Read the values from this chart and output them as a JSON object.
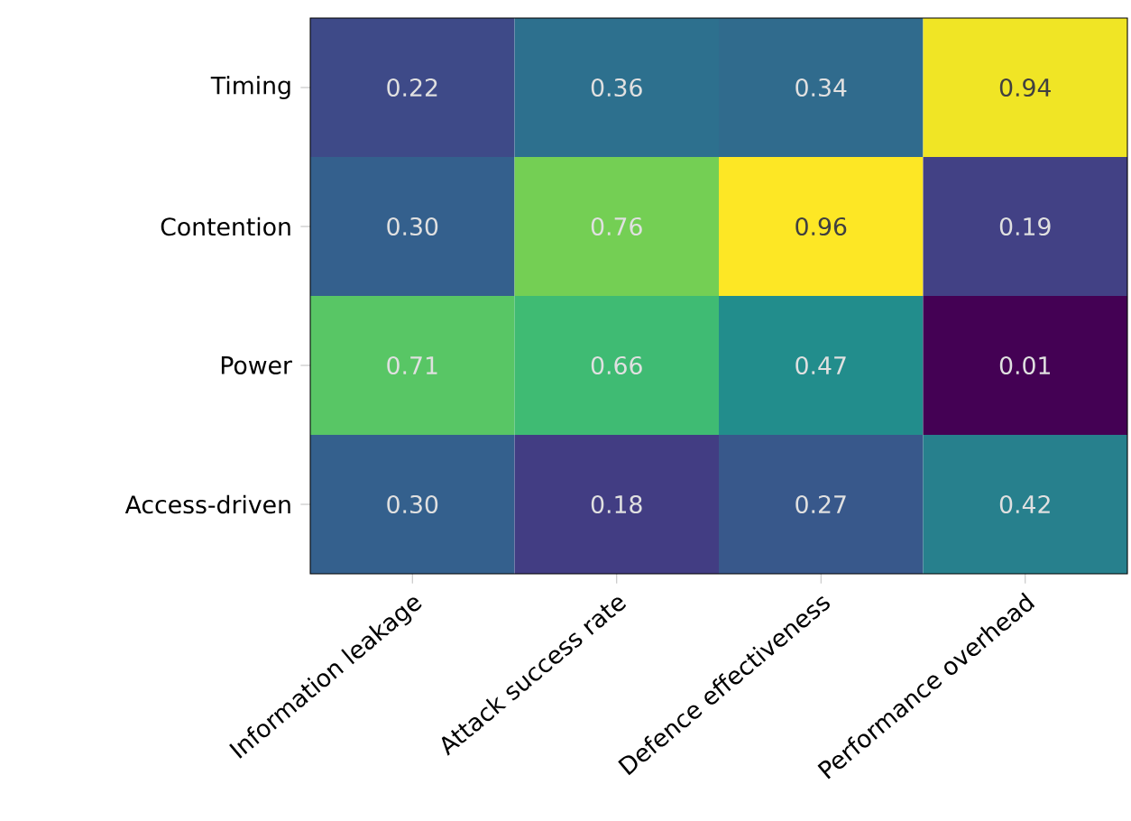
{
  "chart_data": {
    "type": "heatmap",
    "categories": [
      "Information leakage",
      "Attack success rate",
      "Defence effectiveness",
      "Performance overhead"
    ],
    "y_categories": [
      "Timing",
      "Contention",
      "Power",
      "Access-driven"
    ],
    "cells": [
      [
        0.22,
        0.36,
        0.34,
        0.94
      ],
      [
        0.3,
        0.76,
        0.96,
        0.19
      ],
      [
        0.71,
        0.66,
        0.47,
        0.01
      ],
      [
        0.3,
        0.18,
        0.27,
        0.42
      ]
    ],
    "cell_labels": [
      [
        "0.22",
        "0.36",
        "0.34",
        "0.94"
      ],
      [
        "0.30",
        "0.76",
        "0.96",
        "0.19"
      ],
      [
        "0.71",
        "0.66",
        "0.47",
        "0.01"
      ],
      [
        "0.30",
        "0.18",
        "0.27",
        "0.42"
      ]
    ]
  }
}
